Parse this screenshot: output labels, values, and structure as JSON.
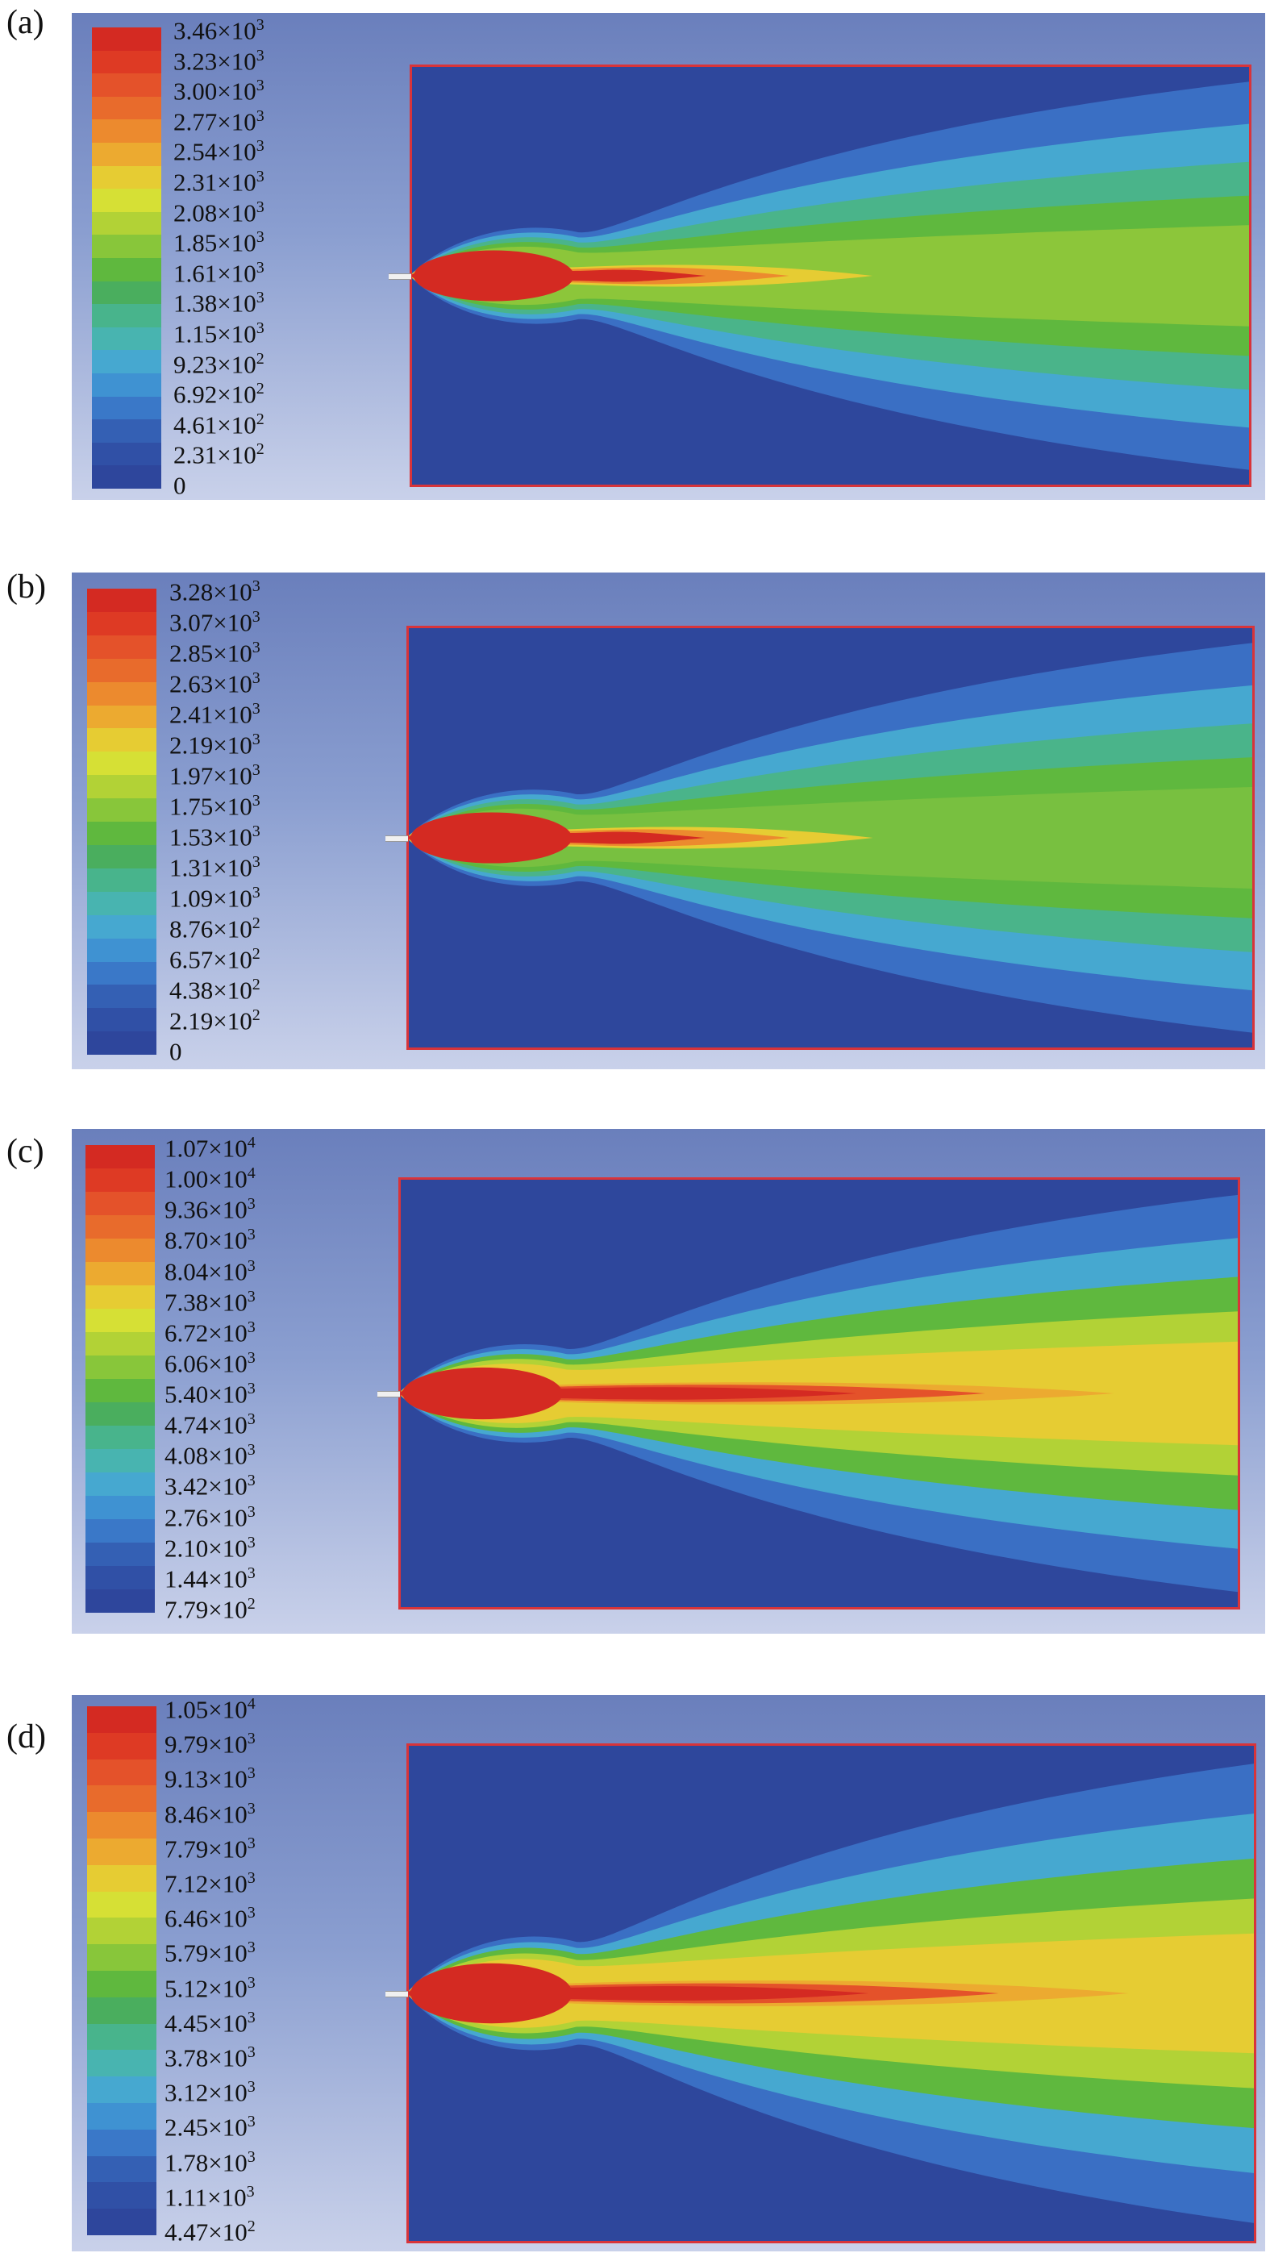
{
  "panels": [
    {
      "label": "(a)",
      "ticks": [
        {
          "m": "3.46",
          "e": "3"
        },
        {
          "m": "3.23",
          "e": "3"
        },
        {
          "m": "3.00",
          "e": "3"
        },
        {
          "m": "2.77",
          "e": "3"
        },
        {
          "m": "2.54",
          "e": "3"
        },
        {
          "m": "2.31",
          "e": "3"
        },
        {
          "m": "2.08",
          "e": "3"
        },
        {
          "m": "1.85",
          "e": "3"
        },
        {
          "m": "1.61",
          "e": "3"
        },
        {
          "m": "1.38",
          "e": "3"
        },
        {
          "m": "1.15",
          "e": "3"
        },
        {
          "m": "9.23",
          "e": "2"
        },
        {
          "m": "6.92",
          "e": "2"
        },
        {
          "m": "4.61",
          "e": "2"
        },
        {
          "m": "2.31",
          "e": "2"
        },
        {
          "m": "0",
          "e": ""
        }
      ],
      "plume": {
        "core": "red",
        "tail": "green-yellow"
      }
    },
    {
      "label": "(b)",
      "ticks": [
        {
          "m": "3.28",
          "e": "3"
        },
        {
          "m": "3.07",
          "e": "3"
        },
        {
          "m": "2.85",
          "e": "3"
        },
        {
          "m": "2.63",
          "e": "3"
        },
        {
          "m": "2.41",
          "e": "3"
        },
        {
          "m": "2.19",
          "e": "3"
        },
        {
          "m": "1.97",
          "e": "3"
        },
        {
          "m": "1.75",
          "e": "3"
        },
        {
          "m": "1.53",
          "e": "3"
        },
        {
          "m": "1.31",
          "e": "3"
        },
        {
          "m": "1.09",
          "e": "3"
        },
        {
          "m": "8.76",
          "e": "2"
        },
        {
          "m": "6.57",
          "e": "2"
        },
        {
          "m": "4.38",
          "e": "2"
        },
        {
          "m": "2.19",
          "e": "2"
        },
        {
          "m": "0",
          "e": ""
        }
      ],
      "plume": {
        "core": "red",
        "tail": "green"
      }
    },
    {
      "label": "(c)",
      "ticks": [
        {
          "m": "1.07",
          "e": "4"
        },
        {
          "m": "1.00",
          "e": "4"
        },
        {
          "m": "9.36",
          "e": "3"
        },
        {
          "m": "8.70",
          "e": "3"
        },
        {
          "m": "8.04",
          "e": "3"
        },
        {
          "m": "7.38",
          "e": "3"
        },
        {
          "m": "6.72",
          "e": "3"
        },
        {
          "m": "6.06",
          "e": "3"
        },
        {
          "m": "5.40",
          "e": "3"
        },
        {
          "m": "4.74",
          "e": "3"
        },
        {
          "m": "4.08",
          "e": "3"
        },
        {
          "m": "3.42",
          "e": "3"
        },
        {
          "m": "2.76",
          "e": "3"
        },
        {
          "m": "2.10",
          "e": "3"
        },
        {
          "m": "1.44",
          "e": "3"
        },
        {
          "m": "7.79",
          "e": "2"
        }
      ],
      "plume": {
        "core": "red",
        "tail": "orange-yellow"
      }
    },
    {
      "label": "(d)",
      "ticks": [
        {
          "m": "1.05",
          "e": "4"
        },
        {
          "m": "9.79",
          "e": "3"
        },
        {
          "m": "9.13",
          "e": "3"
        },
        {
          "m": "8.46",
          "e": "3"
        },
        {
          "m": "7.79",
          "e": "3"
        },
        {
          "m": "7.12",
          "e": "3"
        },
        {
          "m": "6.46",
          "e": "3"
        },
        {
          "m": "5.79",
          "e": "3"
        },
        {
          "m": "5.12",
          "e": "3"
        },
        {
          "m": "4.45",
          "e": "3"
        },
        {
          "m": "3.78",
          "e": "3"
        },
        {
          "m": "3.12",
          "e": "3"
        },
        {
          "m": "2.45",
          "e": "3"
        },
        {
          "m": "1.78",
          "e": "3"
        },
        {
          "m": "1.11",
          "e": "3"
        },
        {
          "m": "4.47",
          "e": "2"
        }
      ],
      "plume": {
        "core": "red",
        "tail": "orange-yellow"
      }
    }
  ],
  "colormap": [
    "#d42a22",
    "#de3a24",
    "#e4522a",
    "#e86b2c",
    "#ec8a2e",
    "#ecaa30",
    "#e6cc33",
    "#d6e035",
    "#b2d236",
    "#88c63a",
    "#5fb83e",
    "#4aae5e",
    "#48b48c",
    "#48b4b0",
    "#46a8d0",
    "#3f92d2",
    "#3a78c8",
    "#3460b4",
    "#3050a6",
    "#2e469c"
  ],
  "colors": {
    "domain_border": "#d8343a",
    "background_field": "#2e479c",
    "nozzle": "#f0f0f0"
  }
}
